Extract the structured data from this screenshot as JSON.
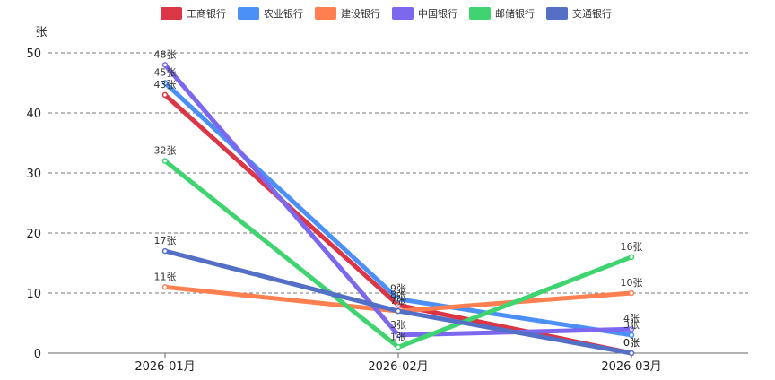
{
  "chart_data": {
    "type": "line",
    "categories": [
      "2026-01月",
      "2026-02月",
      "2026-03月"
    ],
    "ylabel": "张",
    "ylim": [
      0,
      50
    ],
    "yticks": [
      0,
      10,
      20,
      30,
      40,
      50
    ],
    "grid": true,
    "legend_position": "top-center",
    "value_suffix": "张",
    "series": [
      {
        "name": "工商银行",
        "color": "#dc3545",
        "values": [
          43,
          8,
          0
        ]
      },
      {
        "name": "农业银行",
        "color": "#4a90f7",
        "values": [
          45,
          9,
          3
        ]
      },
      {
        "name": "建设银行",
        "color": "#ff7f50",
        "values": [
          11,
          7,
          10
        ]
      },
      {
        "name": "中国银行",
        "color": "#7b68ee",
        "values": [
          48,
          3,
          4
        ]
      },
      {
        "name": "邮储银行",
        "color": "#3fd470",
        "values": [
          32,
          1,
          16
        ]
      },
      {
        "name": "交通银行",
        "color": "#5470c6",
        "values": [
          17,
          7,
          0
        ]
      }
    ]
  }
}
